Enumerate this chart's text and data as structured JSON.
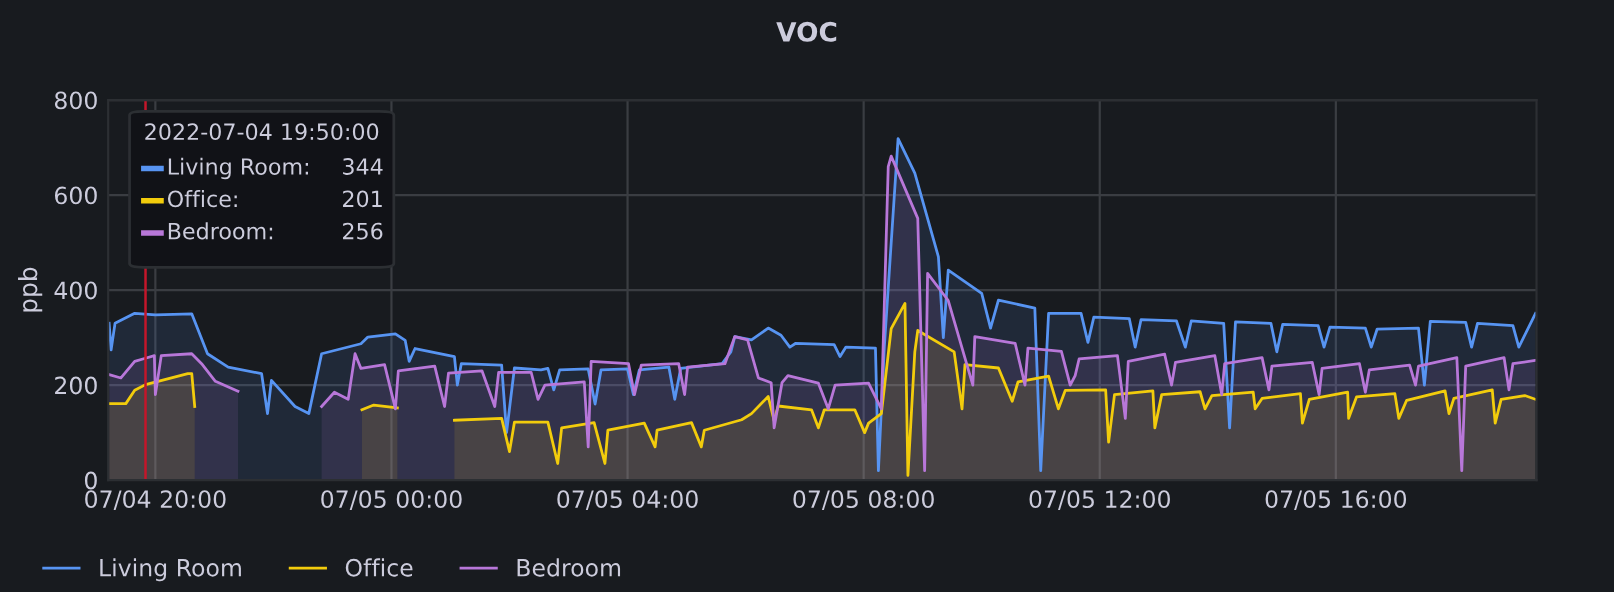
{
  "chart_data": {
    "type": "area",
    "title": "VOC",
    "ylabel": "ppb",
    "xlim": [
      "2022-07-04T19:12",
      "2022-07-05T19:24"
    ],
    "ylim": [
      0,
      800
    ],
    "yticks": [
      0,
      200,
      400,
      600,
      800
    ],
    "xticks": [
      {
        "value": "2022-07-04T20:00",
        "label": "07/04 20:00"
      },
      {
        "value": "2022-07-05T00:00",
        "label": "07/05 00:00"
      },
      {
        "value": "2022-07-05T04:00",
        "label": "07/05 04:00"
      },
      {
        "value": "2022-07-05T08:00",
        "label": "07/05 08:00"
      },
      {
        "value": "2022-07-05T12:00",
        "label": "07/05 12:00"
      },
      {
        "value": "2022-07-05T16:00",
        "label": "07/05 16:00"
      }
    ],
    "grid": true,
    "legend": "bottom left",
    "ref_lines": [
      {
        "axis": "x",
        "value": "2022-07-04T19:50",
        "label": null,
        "color": "#c4162a"
      }
    ],
    "annotations": [
      "2022-07-04 19:50:00",
      "Living Room:",
      "344",
      "Office:",
      "201",
      "Bedroom:",
      "256"
    ],
    "series": [
      {
        "name": "Living Room",
        "color": "#5794f2",
        "x": [
          "2022-07-04T19:13",
          "2022-07-04T19:15",
          "2022-07-04T19:19",
          "2022-07-04T19:39",
          "2022-07-04T20:00",
          "2022-07-04T20:37",
          "2022-07-04T20:53",
          "2022-07-04T21:14",
          "2022-07-04T21:48",
          "2022-07-04T21:54",
          "2022-07-04T21:58",
          "2022-07-04T22:22",
          "2022-07-04T22:36",
          "2022-07-04T22:49",
          "2022-07-04T23:29",
          "2022-07-04T23:36",
          "2022-07-05T00:04",
          "2022-07-05T00:14",
          "2022-07-05T00:18",
          "2022-07-05T00:24",
          "2022-07-05T01:04",
          "2022-07-05T01:07",
          "2022-07-05T01:11",
          "2022-07-05T01:52",
          "2022-07-05T01:57",
          "2022-07-05T02:05",
          "2022-07-05T02:32",
          "2022-07-05T02:39",
          "2022-07-05T02:45",
          "2022-07-05T02:51",
          "2022-07-05T03:20",
          "2022-07-05T03:27",
          "2022-07-05T03:33",
          "2022-07-05T04:00",
          "2022-07-05T04:06",
          "2022-07-05T04:12",
          "2022-07-05T04:42",
          "2022-07-05T04:48",
          "2022-07-05T04:54",
          "2022-07-05T05:36",
          "2022-07-05T05:45",
          "2022-07-05T05:49",
          "2022-07-05T06:06",
          "2022-07-05T06:23",
          "2022-07-05T06:36",
          "2022-07-05T06:45",
          "2022-07-05T06:51",
          "2022-07-05T07:30",
          "2022-07-05T07:36",
          "2022-07-05T07:42",
          "2022-07-05T08:12",
          "2022-07-05T08:15",
          "2022-07-05T08:21",
          "2022-07-05T08:35",
          "2022-07-05T08:52",
          "2022-07-05T09:16",
          "2022-07-05T09:21",
          "2022-07-05T09:26",
          "2022-07-05T10:00",
          "2022-07-05T10:09",
          "2022-07-05T10:17",
          "2022-07-05T10:54",
          "2022-07-05T11:00",
          "2022-07-05T11:08",
          "2022-07-05T11:41",
          "2022-07-05T11:48",
          "2022-07-05T11:54",
          "2022-07-05T12:30",
          "2022-07-05T12:36",
          "2022-07-05T12:42",
          "2022-07-05T13:18",
          "2022-07-05T13:27",
          "2022-07-05T13:33",
          "2022-07-05T14:06",
          "2022-07-05T14:12",
          "2022-07-05T14:18",
          "2022-07-05T14:54",
          "2022-07-05T15:00",
          "2022-07-05T15:06",
          "2022-07-05T15:42",
          "2022-07-05T15:48",
          "2022-07-05T15:54",
          "2022-07-05T16:30",
          "2022-07-05T16:36",
          "2022-07-05T16:42",
          "2022-07-05T17:24",
          "2022-07-05T17:30",
          "2022-07-05T17:36",
          "2022-07-05T18:12",
          "2022-07-05T18:18",
          "2022-07-05T18:24",
          "2022-07-05T19:00",
          "2022-07-05T19:06",
          "2022-07-05T19:23"
        ],
        "values": [
          330,
          274,
          330,
          351,
          348,
          350,
          266,
          238,
          224,
          140,
          210,
          155,
          140,
          266,
          287,
          301,
          308,
          294,
          250,
          277,
          260,
          200,
          245,
          242,
          100,
          236,
          232,
          235,
          190,
          232,
          234,
          160,
          232,
          234,
          180,
          232,
          238,
          170,
          235,
          245,
          270,
          302,
          295,
          320,
          305,
          280,
          288,
          285,
          260,
          280,
          278,
          20,
          280,
          719,
          646,
          470,
          300,
          442,
          393,
          320,
          379,
          362,
          20,
          351,
          351,
          290,
          343,
          340,
          280,
          338,
          335,
          280,
          335,
          330,
          110,
          333,
          330,
          270,
          328,
          325,
          280,
          322,
          320,
          280,
          318,
          320,
          200,
          334,
          332,
          280,
          330,
          325,
          280,
          351
        ]
      },
      {
        "name": "Office",
        "color": "#f2cc0c",
        "x": [
          "2022-07-04T19:13",
          "2022-07-04T19:30",
          "2022-07-04T19:39",
          "2022-07-04T19:50",
          "2022-07-04T20:33",
          "2022-07-04T20:37",
          "2022-07-04T20:40",
          "2022-07-04T20:48",
          "2022-07-04T23:24",
          "2022-07-04T23:30",
          "2022-07-04T23:42",
          "2022-07-05T00:06",
          "2022-07-05T00:12",
          "2022-07-05T01:00",
          "2022-07-05T01:04",
          "2022-07-05T01:52",
          "2022-07-05T02:00",
          "2022-07-05T02:05",
          "2022-07-05T02:39",
          "2022-07-05T02:49",
          "2022-07-05T02:53",
          "2022-07-05T03:26",
          "2022-07-05T03:37",
          "2022-07-05T03:40",
          "2022-07-05T04:17",
          "2022-07-05T04:28",
          "2022-07-05T04:30",
          "2022-07-05T05:05",
          "2022-07-05T05:15",
          "2022-07-05T05:18",
          "2022-07-05T05:56",
          "2022-07-05T06:06",
          "2022-07-05T06:23",
          "2022-07-05T06:29",
          "2022-07-05T06:33",
          "2022-07-05T07:07",
          "2022-07-05T07:14",
          "2022-07-05T07:20",
          "2022-07-05T07:51",
          "2022-07-05T08:01",
          "2022-07-05T08:05",
          "2022-07-05T08:18",
          "2022-07-05T08:28",
          "2022-07-05T08:42",
          "2022-07-05T08:45",
          "2022-07-05T08:52",
          "2022-07-05T08:55",
          "2022-07-05T09:32",
          "2022-07-05T09:40",
          "2022-07-05T09:43",
          "2022-07-05T10:17",
          "2022-07-05T10:31",
          "2022-07-05T10:37",
          "2022-07-05T11:08",
          "2022-07-05T11:18",
          "2022-07-05T11:25",
          "2022-07-05T12:06",
          "2022-07-05T12:09",
          "2022-07-05T12:15",
          "2022-07-05T12:54",
          "2022-07-05T12:56",
          "2022-07-05T13:03",
          "2022-07-05T13:42",
          "2022-07-05T13:47",
          "2022-07-05T13:54",
          "2022-07-05T14:36",
          "2022-07-05T14:38",
          "2022-07-05T14:45",
          "2022-07-05T15:24",
          "2022-07-05T15:26",
          "2022-07-05T15:33",
          "2022-07-05T16:12",
          "2022-07-05T16:13",
          "2022-07-05T16:21",
          "2022-07-05T17:00",
          "2022-07-05T17:04",
          "2022-07-05T17:12",
          "2022-07-05T17:51",
          "2022-07-05T17:55",
          "2022-07-05T18:00",
          "2022-07-05T18:39",
          "2022-07-05T18:42",
          "2022-07-05T18:48",
          "2022-07-05T19:12",
          "2022-07-05T19:23"
        ],
        "values": [
          161,
          161,
          189,
          201,
          224,
          224,
          155,
          null,
          null,
          148,
          158,
          152,
          null,
          null,
          126,
          130,
          60,
          122,
          122,
          35,
          110,
          121,
          35,
          105,
          120,
          70,
          105,
          121,
          70,
          105,
          127,
          140,
          176,
          125,
          156,
          148,
          110,
          148,
          148,
          100,
          120,
          140,
          319,
          372,
          10,
          270,
          315,
          270,
          150,
          243,
          236,
          166,
          207,
          219,
          150,
          189,
          190,
          80,
          180,
          188,
          110,
          180,
          186,
          150,
          178,
          185,
          150,
          172,
          182,
          120,
          170,
          185,
          130,
          175,
          182,
          130,
          168,
          188,
          140,
          172,
          190,
          120,
          170,
          178,
          170
        ]
      },
      {
        "name": "Bedroom",
        "color": "#b877d9",
        "x": [
          "2022-07-04T19:13",
          "2022-07-04T19:25",
          "2022-07-04T19:39",
          "2022-07-04T19:49",
          "2022-07-04T19:59",
          "2022-07-04T20:00",
          "2022-07-04T20:06",
          "2022-07-04T20:37",
          "2022-07-04T20:47",
          "2022-07-04T21:01",
          "2022-07-04T21:24",
          "2022-07-04T21:36",
          "2022-07-04T22:42",
          "2022-07-04T22:49",
          "2022-07-04T23:02",
          "2022-07-04T23:16",
          "2022-07-04T23:23",
          "2022-07-04T23:29",
          "2022-07-04T23:53",
          "2022-07-05T00:04",
          "2022-07-05T00:07",
          "2022-07-05T00:44",
          "2022-07-05T00:54",
          "2022-07-05T00:58",
          "2022-07-05T01:32",
          "2022-07-05T01:45",
          "2022-07-05T01:49",
          "2022-07-05T02:22",
          "2022-07-05T02:29",
          "2022-07-05T02:36",
          "2022-07-05T03:16",
          "2022-07-05T03:20",
          "2022-07-05T03:23",
          "2022-07-05T04:01",
          "2022-07-05T04:07",
          "2022-07-05T04:14",
          "2022-07-05T04:52",
          "2022-07-05T04:58",
          "2022-07-05T05:01",
          "2022-07-05T05:39",
          "2022-07-05T05:49",
          "2022-07-05T06:02",
          "2022-07-05T06:13",
          "2022-07-05T06:26",
          "2022-07-05T06:29",
          "2022-07-05T06:37",
          "2022-07-05T06:43",
          "2022-07-05T07:14",
          "2022-07-05T07:24",
          "2022-07-05T07:31",
          "2022-07-05T08:05",
          "2022-07-05T08:18",
          "2022-07-05T08:25",
          "2022-07-05T08:28",
          "2022-07-05T08:55",
          "2022-07-05T09:02",
          "2022-07-05T09:05",
          "2022-07-05T09:26",
          "2022-07-05T09:51",
          "2022-07-05T09:53",
          "2022-07-05T10:34",
          "2022-07-05T10:44",
          "2022-07-05T10:47",
          "2022-07-05T11:21",
          "2022-07-05T11:30",
          "2022-07-05T11:35",
          "2022-07-05T11:39",
          "2022-07-05T12:18",
          "2022-07-05T12:26",
          "2022-07-05T12:29",
          "2022-07-05T13:06",
          "2022-07-05T13:13",
          "2022-07-05T13:17",
          "2022-07-05T13:57",
          "2022-07-05T14:04",
          "2022-07-05T14:07",
          "2022-07-05T14:45",
          "2022-07-05T14:52",
          "2022-07-05T14:55",
          "2022-07-05T15:36",
          "2022-07-05T15:43",
          "2022-07-05T15:46",
          "2022-07-05T16:24",
          "2022-07-05T16:30",
          "2022-07-05T16:34",
          "2022-07-05T17:15",
          "2022-07-05T17:21",
          "2022-07-05T17:24",
          "2022-07-05T18:03",
          "2022-07-05T18:08",
          "2022-07-05T18:12",
          "2022-07-05T18:51",
          "2022-07-05T18:56",
          "2022-07-05T19:00",
          "2022-07-05T19:23"
        ],
        "values": [
          222,
          215,
          250,
          256,
          262,
          180,
          262,
          266,
          245,
          208,
          187,
          null,
          null,
          155,
          185,
          170,
          266,
          235,
          243,
          150,
          230,
          240,
          155,
          225,
          230,
          155,
          227,
          227,
          170,
          200,
          207,
          70,
          250,
          245,
          180,
          242,
          245,
          180,
          238,
          245,
          302,
          295,
          215,
          205,
          110,
          205,
          220,
          204,
          150,
          200,
          204,
          150,
          660,
          682,
          551,
          20,
          435,
          378,
          200,
          302,
          288,
          200,
          278,
          271,
          200,
          220,
          255,
          262,
          130,
          250,
          265,
          200,
          248,
          262,
          180,
          245,
          258,
          190,
          240,
          248,
          180,
          235,
          245,
          185,
          232,
          242,
          200,
          240,
          258,
          20,
          240,
          258,
          190,
          245,
          252
        ]
      }
    ]
  }
}
